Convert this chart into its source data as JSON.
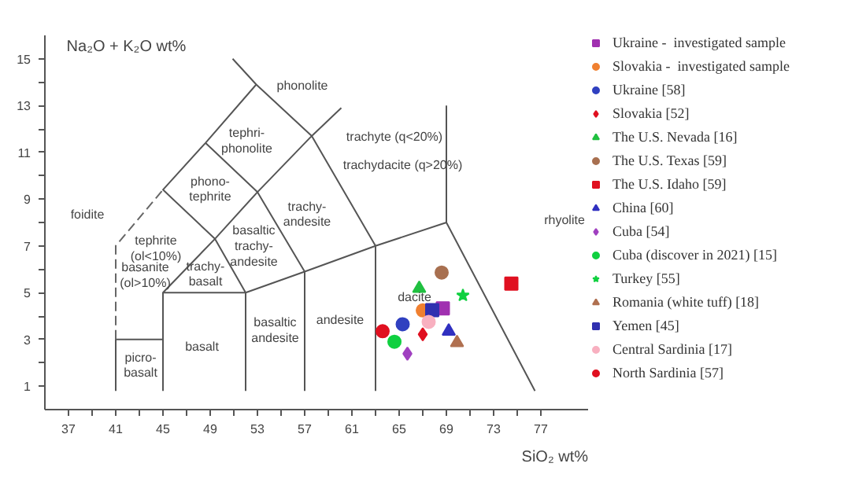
{
  "chart_data": {
    "type": "scatter",
    "xlabel": "SiO₂ wt%",
    "ylabel": "Na₂O + K₂O wt%",
    "xlim": [
      35,
      81
    ],
    "ylim": [
      0,
      16
    ],
    "xticks": [
      37,
      {
        "value": 39,
        "label": null
      },
      41,
      {
        "value": 43,
        "label": null
      },
      45,
      {
        "value": 47,
        "label": null
      },
      49,
      {
        "value": 51,
        "label": null
      },
      53,
      {
        "value": 55,
        "label": null
      },
      57,
      {
        "value": 59,
        "label": null
      },
      61,
      {
        "value": 63,
        "label": null
      },
      65,
      {
        "value": 67,
        "label": null
      },
      69,
      {
        "value": 71,
        "label": null
      },
      73,
      {
        "value": 75,
        "label": null
      },
      77
    ],
    "yticks": [
      1,
      {
        "value": 2,
        "label": null
      },
      3,
      {
        "value": 4,
        "label": null
      },
      5,
      {
        "value": 6,
        "label": null
      },
      7,
      {
        "value": 8,
        "label": null
      },
      9,
      {
        "value": 10,
        "label": null
      },
      11,
      {
        "value": 12,
        "label": null
      },
      13,
      {
        "value": 14,
        "label": null
      },
      15
    ],
    "grid": false,
    "legend": "right",
    "series": [
      {
        "type": "line",
        "color": "#555555",
        "marker": "none",
        "line_style": "solid",
        "x": [
          41,
          41,
          45,
          null,
          45,
          45,
          52,
          52,
          null,
          45,
          49.4,
          52,
          null,
          52,
          57,
          63,
          69,
          69,
          null,
          57,
          57,
          53,
          48.6,
          45,
          49.4,
          53,
          57.6,
          60.1,
          null,
          48.6,
          52.9,
          57.6,
          63,
          63,
          null,
          50.9,
          52.9,
          null,
          69,
          76.5
        ],
        "values": [
          0.8,
          3,
          3,
          null,
          0.8,
          5,
          5,
          0.8,
          null,
          5,
          7.3,
          5,
          null,
          5,
          5.9,
          7,
          8,
          13,
          null,
          0.8,
          5.9,
          9.3,
          11.4,
          9.4,
          7.3,
          9.3,
          11.7,
          12.9,
          null,
          11.4,
          13.9,
          11.7,
          7,
          0.8,
          null,
          15,
          13.9,
          null,
          8,
          0.8
        ]
      },
      {
        "type": "line",
        "color": "#666666",
        "marker": "none",
        "line_style": "dashed",
        "x": [
          41,
          41,
          45
        ],
        "values": [
          3,
          7,
          9.4
        ]
      },
      {
        "type": "scatter",
        "name": "Ukraine -  investigated sample",
        "color": "#a030b0",
        "marker": "square",
        "x": [
          68.7
        ],
        "values": [
          4.33
        ]
      },
      {
        "type": "scatter",
        "name": "Slovakia -  investigated sample",
        "color": "#f08030",
        "marker": "circle",
        "x": [
          67.0
        ],
        "values": [
          4.24
        ]
      },
      {
        "type": "scatter",
        "name": "Ukraine [58]",
        "color": "#3040c0",
        "marker": "circle",
        "x": [
          65.3
        ],
        "values": [
          3.65
        ]
      },
      {
        "type": "scatter",
        "name": "Slovakia [52]",
        "color": "#e01020",
        "marker": "diamond",
        "x": [
          67.0
        ],
        "values": [
          3.22
        ]
      },
      {
        "type": "scatter",
        "name": "The U.S. Nevada [16]",
        "color": "#20c040",
        "marker": "triangle",
        "x": [
          66.7
        ],
        "values": [
          5.18
        ]
      },
      {
        "type": "scatter",
        "name": "The U.S. Texas [59]",
        "color": "#a87050",
        "marker": "circle",
        "x": [
          68.6
        ],
        "values": [
          5.86
        ]
      },
      {
        "type": "scatter",
        "name": "The U.S. Idaho [59]",
        "color": "#e01020",
        "marker": "square",
        "x": [
          74.5
        ],
        "values": [
          5.39
        ]
      },
      {
        "type": "scatter",
        "name": "China [60]",
        "color": "#3030c0",
        "marker": "triangle",
        "x": [
          69.2
        ],
        "values": [
          3.35
        ]
      },
      {
        "type": "scatter",
        "name": "Cuba [54]",
        "color": "#a040c0",
        "marker": "diamond",
        "x": [
          65.7
        ],
        "values": [
          2.39
        ]
      },
      {
        "type": "scatter",
        "name": "Cuba (discover in 2021) [15]",
        "color": "#10d040",
        "marker": "circle",
        "x": [
          64.6
        ],
        "values": [
          2.9
        ]
      },
      {
        "type": "scatter",
        "name": "Turkey [55]",
        "color": "#10d040",
        "marker": "star",
        "x": [
          70.4
        ],
        "values": [
          4.88
        ]
      },
      {
        "type": "scatter",
        "name": "Romania (white tuff) [18]",
        "color": "#b07050",
        "marker": "triangle",
        "x": [
          69.9
        ],
        "values": [
          2.86
        ]
      },
      {
        "type": "scatter",
        "name": "Yemen [45]",
        "color": "#3030b0",
        "marker": "square",
        "x": [
          67.8
        ],
        "values": [
          4.25
        ]
      },
      {
        "type": "scatter",
        "name": "Central Sardinia [17]",
        "color": "#f8b0c0",
        "marker": "circle",
        "x": [
          67.5
        ],
        "values": [
          3.75
        ]
      },
      {
        "type": "scatter",
        "name": "North Sardinia [57]",
        "color": "#e01020",
        "marker": "circle",
        "x": [
          63.6
        ],
        "values": [
          3.35
        ]
      }
    ],
    "annotations": [
      "phonolite",
      "tephri-\nphonolite",
      "trachyte (q<20%)",
      "trachydacite (q>20%)",
      "phono-\ntephrite",
      "foidite",
      "trachy-\nandesite",
      "rhyolite",
      "tephrite\n(ol<10%)",
      "basanite\n(ol>10%)",
      "basaltic\ntrachy-\nandesite",
      "trachy-\nbasalt",
      "picro-\nbasalt",
      "basalt",
      "basaltic\nandesite",
      "andesite",
      "dacite"
    ]
  }
}
